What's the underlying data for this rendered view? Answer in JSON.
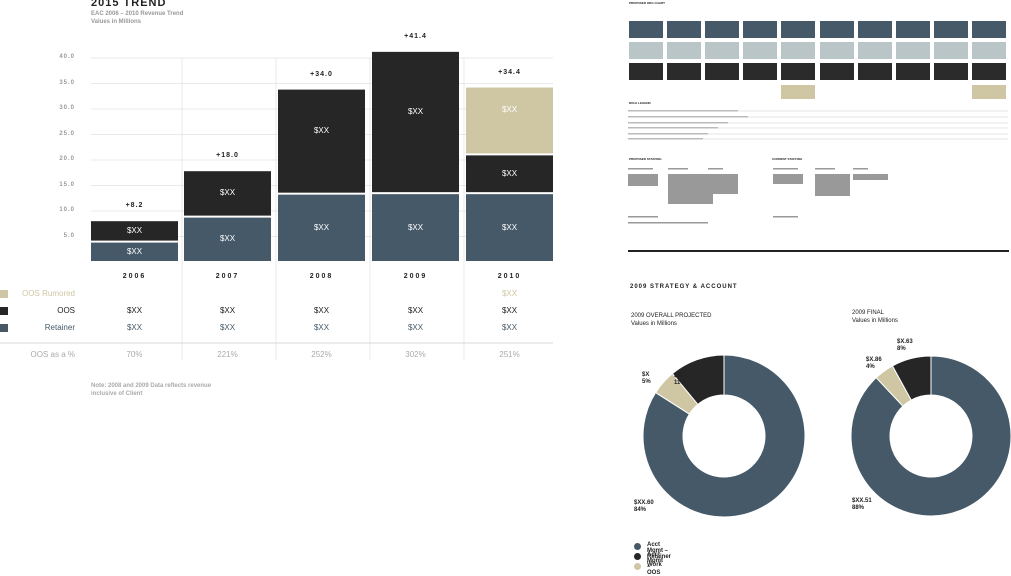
{
  "trend": {
    "title": "2015 TREND",
    "subtitle1": "EAC 2006 – 2010 Revenue Trend",
    "subtitle2": "Values in Millions",
    "note1": "Note: 2008 and 2009 Data reflects revenue",
    "note2": "inclusive of Client"
  },
  "chart_data": [
    {
      "type": "bar",
      "title": "2015 TREND",
      "subtitle": "EAC 2006 – 2010 Revenue Trend / Values in Millions",
      "stacked": true,
      "categories": [
        "2006",
        "2007",
        "2008",
        "2009",
        "2010"
      ],
      "ylim": [
        0,
        40
      ],
      "yticks": [
        "5.0",
        "10.0",
        "15.0",
        "20.0",
        "25.0",
        "30.0",
        "35.0",
        "40.0"
      ],
      "totals": [
        "+8.2",
        "+18.0",
        "+34.0",
        "+41.4",
        "+34.4"
      ],
      "series": [
        {
          "name": "Retainer",
          "color": "#465968",
          "values": [
            4.0,
            8.9,
            13.4,
            13.5,
            13.5
          ],
          "labels": [
            "$XX",
            "$XX",
            "$XX",
            "$XX",
            "$XX"
          ]
        },
        {
          "name": "OOS",
          "color": "#262626",
          "values": [
            4.2,
            9.1,
            20.6,
            27.9,
            7.6
          ],
          "labels": [
            "$XX",
            "$XX",
            "$XX",
            "$XX",
            "$XX"
          ]
        },
        {
          "name": "OOS Rumored",
          "color": "#cfc6a4",
          "values": [
            0,
            0,
            0,
            0,
            13.3
          ],
          "labels": [
            "",
            "",
            "",
            "",
            "$XX"
          ]
        }
      ],
      "table": {
        "rows": [
          {
            "label": "OOS Rumored",
            "swatch": "#cfc6a4",
            "text_color": "#cfc6a4",
            "values": [
              "",
              "",
              "",
              "",
              "$XX"
            ]
          },
          {
            "label": "OOS",
            "swatch": "#262626",
            "text_color": "#222222",
            "values": [
              "$XX",
              "$XX",
              "$XX",
              "$XX",
              "$XX"
            ]
          },
          {
            "label": "Retainer",
            "swatch": "#465968",
            "text_color": "#465968",
            "values": [
              "$XX",
              "$XX",
              "$XX",
              "$XX",
              "$XX"
            ]
          }
        ],
        "pct_label": "OOS as a %",
        "pct_values": [
          "70%",
          "221%",
          "252%",
          "302%",
          "251%"
        ]
      }
    },
    {
      "type": "pie",
      "title": "2009 OVERALL PROJECTED",
      "subtitle": "Values in Millions",
      "slices": [
        {
          "name": "Acct Mgmt – Retainer",
          "value": 84,
          "label": "$XX.60",
          "pct": "84%",
          "color": "#465968"
        },
        {
          "name": "Work",
          "value": 5,
          "label": "$X",
          "pct": "5%",
          "color": "#cfc6a4"
        },
        {
          "name": "Acct Mgmt – OOS",
          "value": 11,
          "label": "$X",
          "pct": "11%",
          "color": "#262626"
        }
      ]
    },
    {
      "type": "pie",
      "title": "2009 FINAL",
      "subtitle": "Values in Millions",
      "slices": [
        {
          "name": "Acct Mgmt – Retainer",
          "value": 88,
          "label": "$XX.51",
          "pct": "88%",
          "color": "#465968"
        },
        {
          "name": "Work",
          "value": 4,
          "label": "$X.86",
          "pct": "4%",
          "color": "#cfc6a4"
        },
        {
          "name": "Acct Mgmt – OOS",
          "value": 8,
          "label": "$X.63",
          "pct": "8%",
          "color": "#262626"
        }
      ]
    }
  ],
  "strategy": {
    "title": "2009 STRATEGY & ACCOUNT",
    "legend": [
      {
        "label": "Acct Mgmt – Retainer",
        "color": "#465968"
      },
      {
        "label": "Acct Mgmt – OOS",
        "color": "#262626"
      },
      {
        "label": "Work",
        "color": "#cfc6a4"
      }
    ]
  },
  "org": {
    "title": "PROPOSED ORG CHART",
    "section1": "ROLE LEGEND",
    "section2": "PROPOSED STAFFING",
    "section3": "CURRENT STAFFING"
  }
}
